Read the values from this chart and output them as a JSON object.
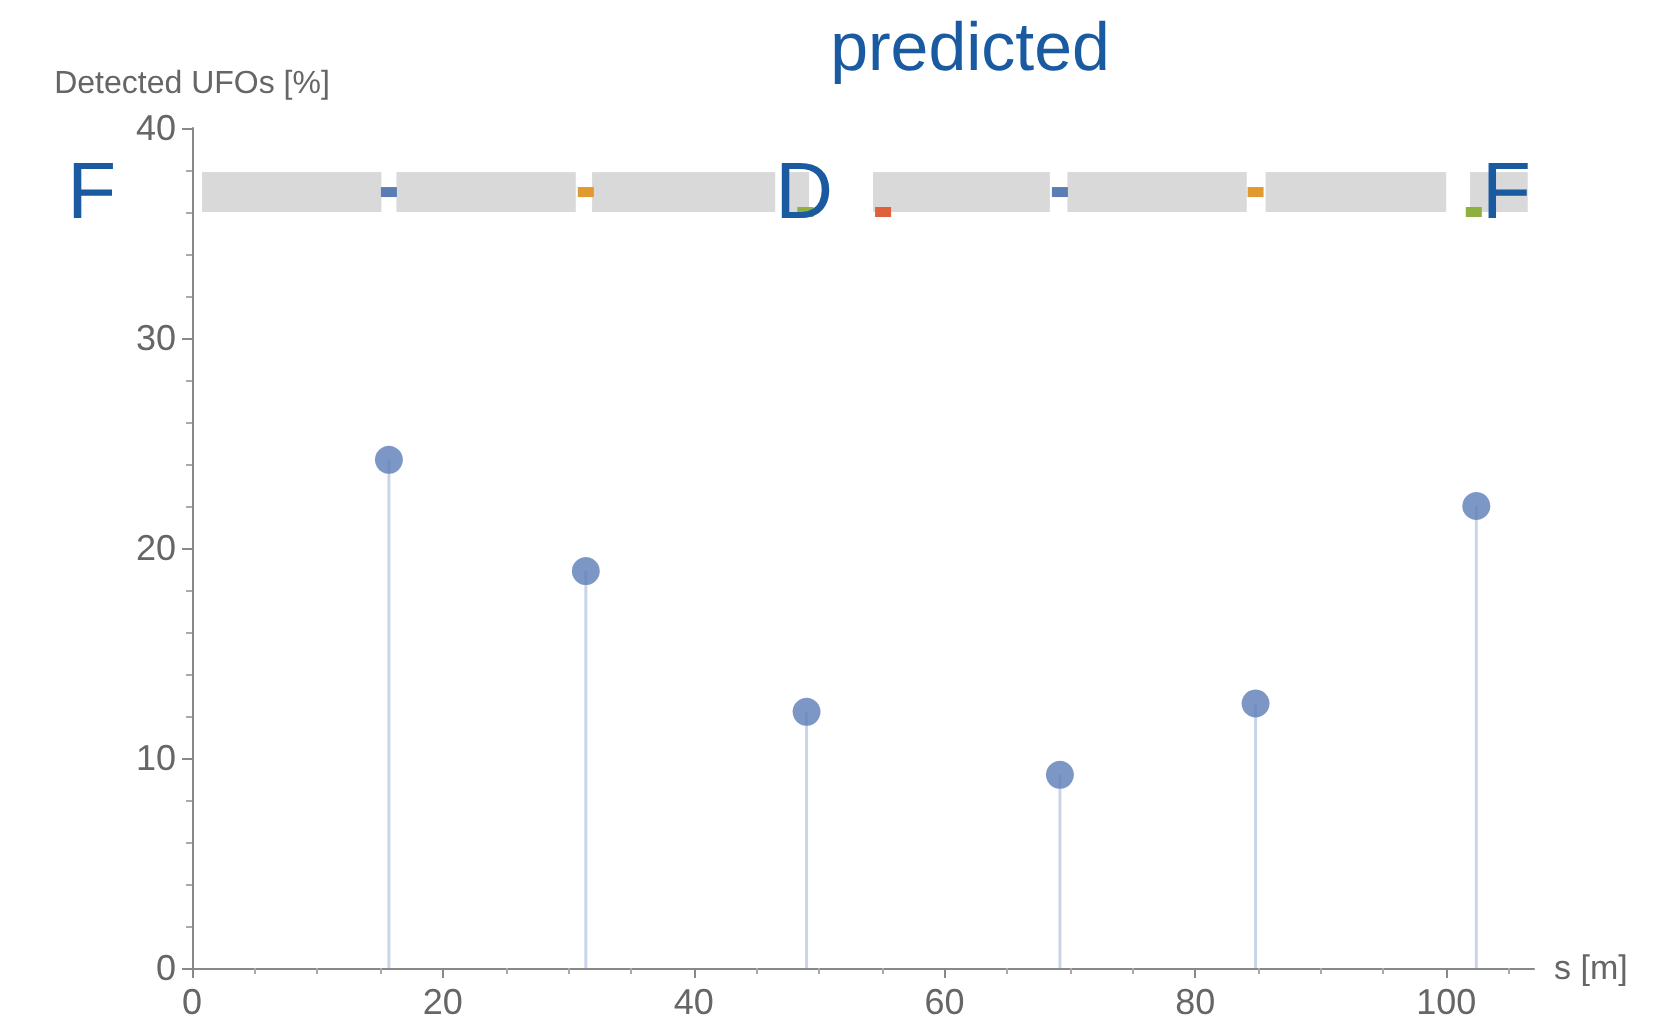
{
  "chart_data": {
    "type": "lollipop",
    "title": "predicted",
    "xlabel": "s [m]",
    "ylabel": "Detected UFOs [%]",
    "annotations": [
      "F",
      "D",
      "F"
    ],
    "x": [
      15.7,
      31.4,
      49.0,
      69.2,
      84.8,
      102.4
    ],
    "series": [
      {
        "color": "#5b7db6",
        "values": [
          24.2,
          18.9,
          12.2,
          9.2,
          12.6,
          22.0
        ]
      }
    ],
    "xlim": [
      0,
      107
    ],
    "xticks": [
      0,
      20,
      40,
      60,
      80,
      100
    ],
    "ylim": [
      0,
      40
    ],
    "yticks": [
      0,
      10,
      20,
      30,
      40
    ],
    "grid": false,
    "marker": "circle"
  }
}
